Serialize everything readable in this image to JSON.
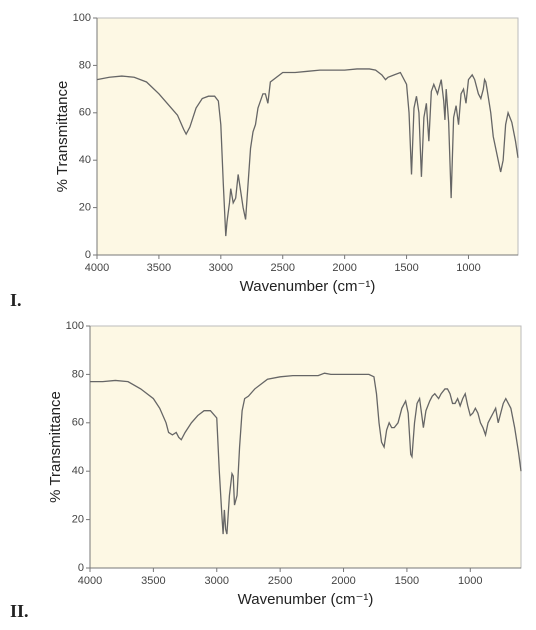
{
  "chart_data": [
    {
      "type": "line",
      "title": "I.",
      "xlabel": "Wavenumber (cm⁻¹)",
      "ylabel": "% Transmittance",
      "xlim": [
        4000,
        600
      ],
      "ylim": [
        0,
        100
      ],
      "xticks": [
        4000,
        3500,
        3000,
        2500,
        2000,
        1500,
        1000
      ],
      "yticks": [
        0,
        20,
        40,
        60,
        80,
        100
      ],
      "color": "#666666",
      "plot_background": "#fdf8e4",
      "grid": false,
      "x": [
        4000,
        3900,
        3800,
        3700,
        3650,
        3600,
        3500,
        3400,
        3350,
        3300,
        3280,
        3250,
        3200,
        3150,
        3100,
        3050,
        3020,
        3000,
        2980,
        2960,
        2950,
        2930,
        2920,
        2900,
        2880,
        2860,
        2840,
        2820,
        2800,
        2780,
        2760,
        2740,
        2720,
        2700,
        2680,
        2660,
        2640,
        2620,
        2600,
        2500,
        2400,
        2300,
        2200,
        2100,
        2000,
        1900,
        1800,
        1750,
        1700,
        1670,
        1650,
        1600,
        1550,
        1500,
        1480,
        1460,
        1440,
        1420,
        1400,
        1380,
        1360,
        1340,
        1320,
        1300,
        1280,
        1250,
        1220,
        1200,
        1190,
        1180,
        1160,
        1140,
        1120,
        1100,
        1080,
        1060,
        1040,
        1020,
        1000,
        970,
        950,
        920,
        900,
        880,
        870,
        860,
        850,
        820,
        800,
        780,
        760,
        740,
        720,
        700,
        680,
        650,
        620,
        600
      ],
      "values": [
        74,
        75,
        75.5,
        75,
        74,
        73,
        68,
        62,
        59,
        53,
        51,
        54,
        62,
        66,
        67,
        67,
        65,
        55,
        30,
        8,
        14,
        22,
        28,
        22,
        24,
        34,
        27,
        20,
        15,
        30,
        45,
        52,
        55,
        62,
        65,
        68,
        68,
        64,
        73,
        77,
        77,
        77.5,
        78,
        78,
        78,
        78.5,
        78.5,
        78,
        76,
        74,
        75,
        76,
        77,
        72,
        60,
        34,
        62,
        67,
        60,
        33,
        58,
        64,
        48,
        69,
        72,
        68,
        74,
        65,
        57,
        70,
        56,
        24,
        58,
        63,
        55,
        68,
        70,
        64,
        74,
        76,
        74,
        68,
        66,
        70,
        74,
        73,
        70,
        60,
        50,
        45,
        40,
        35,
        40,
        55,
        60,
        56,
        48,
        41
      ]
    },
    {
      "type": "line",
      "title": "II.",
      "xlabel": "Wavenumber (cm⁻¹)",
      "ylabel": "% Transmittance",
      "xlim": [
        4000,
        600
      ],
      "ylim": [
        0,
        100
      ],
      "xticks": [
        4000,
        3500,
        3000,
        2500,
        2000,
        1500,
        1000
      ],
      "yticks": [
        0,
        20,
        40,
        60,
        80,
        100
      ],
      "color": "#666666",
      "plot_background": "#fdf8e4",
      "grid": false,
      "x": [
        4000,
        3900,
        3800,
        3700,
        3600,
        3500,
        3450,
        3400,
        3380,
        3350,
        3320,
        3300,
        3280,
        3250,
        3200,
        3150,
        3100,
        3050,
        3000,
        2980,
        2960,
        2950,
        2940,
        2930,
        2920,
        2900,
        2880,
        2870,
        2860,
        2840,
        2820,
        2800,
        2780,
        2750,
        2700,
        2600,
        2500,
        2400,
        2300,
        2200,
        2150,
        2100,
        2000,
        1900,
        1800,
        1760,
        1740,
        1720,
        1700,
        1680,
        1660,
        1640,
        1620,
        1600,
        1570,
        1540,
        1510,
        1490,
        1470,
        1460,
        1440,
        1420,
        1400,
        1380,
        1370,
        1350,
        1320,
        1300,
        1280,
        1250,
        1230,
        1200,
        1180,
        1160,
        1140,
        1120,
        1100,
        1080,
        1060,
        1040,
        1020,
        1000,
        980,
        960,
        940,
        920,
        900,
        880,
        860,
        840,
        820,
        800,
        780,
        760,
        740,
        720,
        700,
        680,
        650,
        620,
        600
      ],
      "values": [
        77,
        77,
        77.5,
        77,
        74,
        70,
        66,
        60,
        56,
        55,
        56,
        54,
        53,
        56,
        60,
        63,
        65,
        65,
        62,
        40,
        22,
        14,
        24,
        16,
        14,
        30,
        39,
        38,
        26,
        30,
        50,
        65,
        70,
        71,
        74,
        78,
        79,
        79.5,
        79.5,
        79.5,
        80.5,
        80,
        80,
        80,
        80,
        79,
        72,
        60,
        52,
        50,
        57,
        60,
        58,
        58,
        60,
        66,
        69,
        64,
        47,
        46,
        60,
        68,
        70,
        62,
        58,
        65,
        69,
        71,
        72,
        70,
        72,
        74,
        74,
        72,
        68,
        68,
        70,
        67,
        70,
        72,
        67,
        63,
        64,
        66,
        64,
        60,
        58,
        55,
        60,
        62,
        64,
        66,
        60,
        64,
        68,
        70,
        68,
        66,
        58,
        48,
        40
      ]
    }
  ]
}
